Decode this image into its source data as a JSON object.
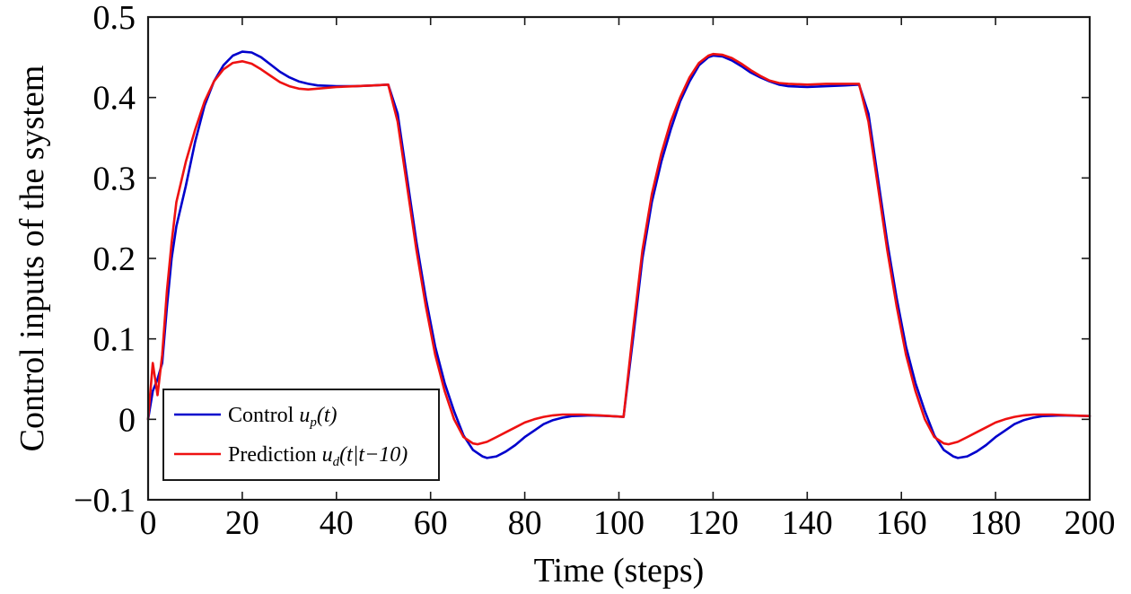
{
  "chart_data": {
    "type": "line",
    "title": "",
    "xlabel": "Time (steps)",
    "ylabel": "Control inputs of the system",
    "xlim": [
      0,
      200
    ],
    "ylim": [
      -0.1,
      0.5
    ],
    "x_ticks": [
      0,
      20,
      40,
      60,
      80,
      100,
      120,
      140,
      160,
      180,
      200
    ],
    "x_tick_labels": [
      "0",
      "20",
      "40",
      "60",
      "80",
      "100",
      "120",
      "140",
      "160",
      "180",
      "200"
    ],
    "y_ticks": [
      -0.1,
      0,
      0.1,
      0.2,
      0.3,
      0.4,
      0.5
    ],
    "y_tick_labels": [
      "−0.1",
      "0",
      "0.1",
      "0.2",
      "0.3",
      "0.4",
      "0.5"
    ],
    "grid": false,
    "legend_position": "bottom-left",
    "series": [
      {
        "color": "#0000cc",
        "legend": {
          "prefix": "Control ",
          "var": "u",
          "sub": "p",
          "arg": "(t)"
        },
        "points": [
          [
            0,
            0
          ],
          [
            1,
            0.035
          ],
          [
            2,
            0.05
          ],
          [
            3,
            0.07
          ],
          [
            4,
            0.14
          ],
          [
            5,
            0.2
          ],
          [
            6,
            0.24
          ],
          [
            8,
            0.29
          ],
          [
            10,
            0.345
          ],
          [
            12,
            0.39
          ],
          [
            14,
            0.42
          ],
          [
            16,
            0.44
          ],
          [
            18,
            0.452
          ],
          [
            20,
            0.457
          ],
          [
            22,
            0.456
          ],
          [
            24,
            0.45
          ],
          [
            26,
            0.441
          ],
          [
            28,
            0.432
          ],
          [
            30,
            0.425
          ],
          [
            32,
            0.42
          ],
          [
            34,
            0.417
          ],
          [
            36,
            0.415
          ],
          [
            40,
            0.414
          ],
          [
            44,
            0.414
          ],
          [
            48,
            0.415
          ],
          [
            51,
            0.416
          ],
          [
            53,
            0.38
          ],
          [
            55,
            0.3
          ],
          [
            57,
            0.22
          ],
          [
            59,
            0.15
          ],
          [
            61,
            0.09
          ],
          [
            63,
            0.045
          ],
          [
            65,
            0.01
          ],
          [
            67,
            -0.02
          ],
          [
            69,
            -0.038
          ],
          [
            71,
            -0.046
          ],
          [
            72,
            -0.048
          ],
          [
            74,
            -0.046
          ],
          [
            76,
            -0.04
          ],
          [
            78,
            -0.032
          ],
          [
            80,
            -0.022
          ],
          [
            82,
            -0.014
          ],
          [
            84,
            -0.006
          ],
          [
            86,
            -0.001
          ],
          [
            88,
            0.002
          ],
          [
            90,
            0.004
          ],
          [
            94,
            0.005
          ],
          [
            98,
            0.004
          ],
          [
            101,
            0.003
          ],
          [
            103,
            0.1
          ],
          [
            105,
            0.2
          ],
          [
            107,
            0.27
          ],
          [
            109,
            0.32
          ],
          [
            111,
            0.36
          ],
          [
            113,
            0.395
          ],
          [
            115,
            0.42
          ],
          [
            117,
            0.44
          ],
          [
            119,
            0.45
          ],
          [
            120,
            0.452
          ],
          [
            122,
            0.451
          ],
          [
            124,
            0.446
          ],
          [
            126,
            0.439
          ],
          [
            128,
            0.431
          ],
          [
            130,
            0.425
          ],
          [
            132,
            0.42
          ],
          [
            134,
            0.416
          ],
          [
            136,
            0.414
          ],
          [
            140,
            0.413
          ],
          [
            144,
            0.414
          ],
          [
            148,
            0.415
          ],
          [
            151,
            0.416
          ],
          [
            153,
            0.38
          ],
          [
            155,
            0.3
          ],
          [
            157,
            0.22
          ],
          [
            159,
            0.15
          ],
          [
            161,
            0.09
          ],
          [
            163,
            0.045
          ],
          [
            165,
            0.01
          ],
          [
            167,
            -0.02
          ],
          [
            169,
            -0.038
          ],
          [
            171,
            -0.046
          ],
          [
            172,
            -0.048
          ],
          [
            174,
            -0.046
          ],
          [
            176,
            -0.04
          ],
          [
            178,
            -0.032
          ],
          [
            180,
            -0.022
          ],
          [
            182,
            -0.014
          ],
          [
            184,
            -0.006
          ],
          [
            186,
            -0.001
          ],
          [
            188,
            0.002
          ],
          [
            190,
            0.004
          ],
          [
            194,
            0.005
          ],
          [
            200,
            0.004
          ]
        ]
      },
      {
        "color": "#ee1111",
        "legend": {
          "prefix": "Prediction ",
          "var": "u",
          "sub": "d",
          "arg": "(t|t−10)"
        },
        "points": [
          [
            0,
            0
          ],
          [
            1,
            0.07
          ],
          [
            2,
            0.03
          ],
          [
            3,
            0.08
          ],
          [
            4,
            0.16
          ],
          [
            5,
            0.22
          ],
          [
            6,
            0.27
          ],
          [
            8,
            0.32
          ],
          [
            10,
            0.36
          ],
          [
            12,
            0.395
          ],
          [
            14,
            0.42
          ],
          [
            16,
            0.435
          ],
          [
            18,
            0.443
          ],
          [
            20,
            0.445
          ],
          [
            22,
            0.442
          ],
          [
            24,
            0.435
          ],
          [
            26,
            0.427
          ],
          [
            28,
            0.419
          ],
          [
            30,
            0.414
          ],
          [
            32,
            0.411
          ],
          [
            34,
            0.41
          ],
          [
            36,
            0.411
          ],
          [
            40,
            0.413
          ],
          [
            44,
            0.414
          ],
          [
            48,
            0.415
          ],
          [
            51,
            0.416
          ],
          [
            53,
            0.37
          ],
          [
            55,
            0.29
          ],
          [
            57,
            0.21
          ],
          [
            59,
            0.14
          ],
          [
            61,
            0.08
          ],
          [
            63,
            0.035
          ],
          [
            65,
            0.0
          ],
          [
            67,
            -0.022
          ],
          [
            69,
            -0.03
          ],
          [
            70,
            -0.031
          ],
          [
            72,
            -0.028
          ],
          [
            74,
            -0.022
          ],
          [
            76,
            -0.016
          ],
          [
            78,
            -0.01
          ],
          [
            80,
            -0.004
          ],
          [
            82,
            0.0
          ],
          [
            84,
            0.003
          ],
          [
            86,
            0.005
          ],
          [
            88,
            0.006
          ],
          [
            92,
            0.006
          ],
          [
            96,
            0.005
          ],
          [
            101,
            0.003
          ],
          [
            103,
            0.11
          ],
          [
            105,
            0.21
          ],
          [
            107,
            0.28
          ],
          [
            109,
            0.33
          ],
          [
            111,
            0.37
          ],
          [
            113,
            0.4
          ],
          [
            115,
            0.425
          ],
          [
            117,
            0.443
          ],
          [
            119,
            0.452
          ],
          [
            120,
            0.454
          ],
          [
            122,
            0.453
          ],
          [
            124,
            0.449
          ],
          [
            126,
            0.442
          ],
          [
            128,
            0.434
          ],
          [
            130,
            0.427
          ],
          [
            132,
            0.421
          ],
          [
            134,
            0.418
          ],
          [
            136,
            0.417
          ],
          [
            140,
            0.416
          ],
          [
            144,
            0.417
          ],
          [
            148,
            0.417
          ],
          [
            151,
            0.417
          ],
          [
            153,
            0.37
          ],
          [
            155,
            0.29
          ],
          [
            157,
            0.21
          ],
          [
            159,
            0.14
          ],
          [
            161,
            0.08
          ],
          [
            163,
            0.035
          ],
          [
            165,
            0.0
          ],
          [
            167,
            -0.022
          ],
          [
            169,
            -0.03
          ],
          [
            170,
            -0.031
          ],
          [
            172,
            -0.028
          ],
          [
            174,
            -0.022
          ],
          [
            176,
            -0.016
          ],
          [
            178,
            -0.01
          ],
          [
            180,
            -0.004
          ],
          [
            182,
            0.0
          ],
          [
            184,
            0.003
          ],
          [
            186,
            0.005
          ],
          [
            188,
            0.006
          ],
          [
            192,
            0.006
          ],
          [
            196,
            0.005
          ],
          [
            200,
            0.004
          ]
        ]
      }
    ]
  }
}
